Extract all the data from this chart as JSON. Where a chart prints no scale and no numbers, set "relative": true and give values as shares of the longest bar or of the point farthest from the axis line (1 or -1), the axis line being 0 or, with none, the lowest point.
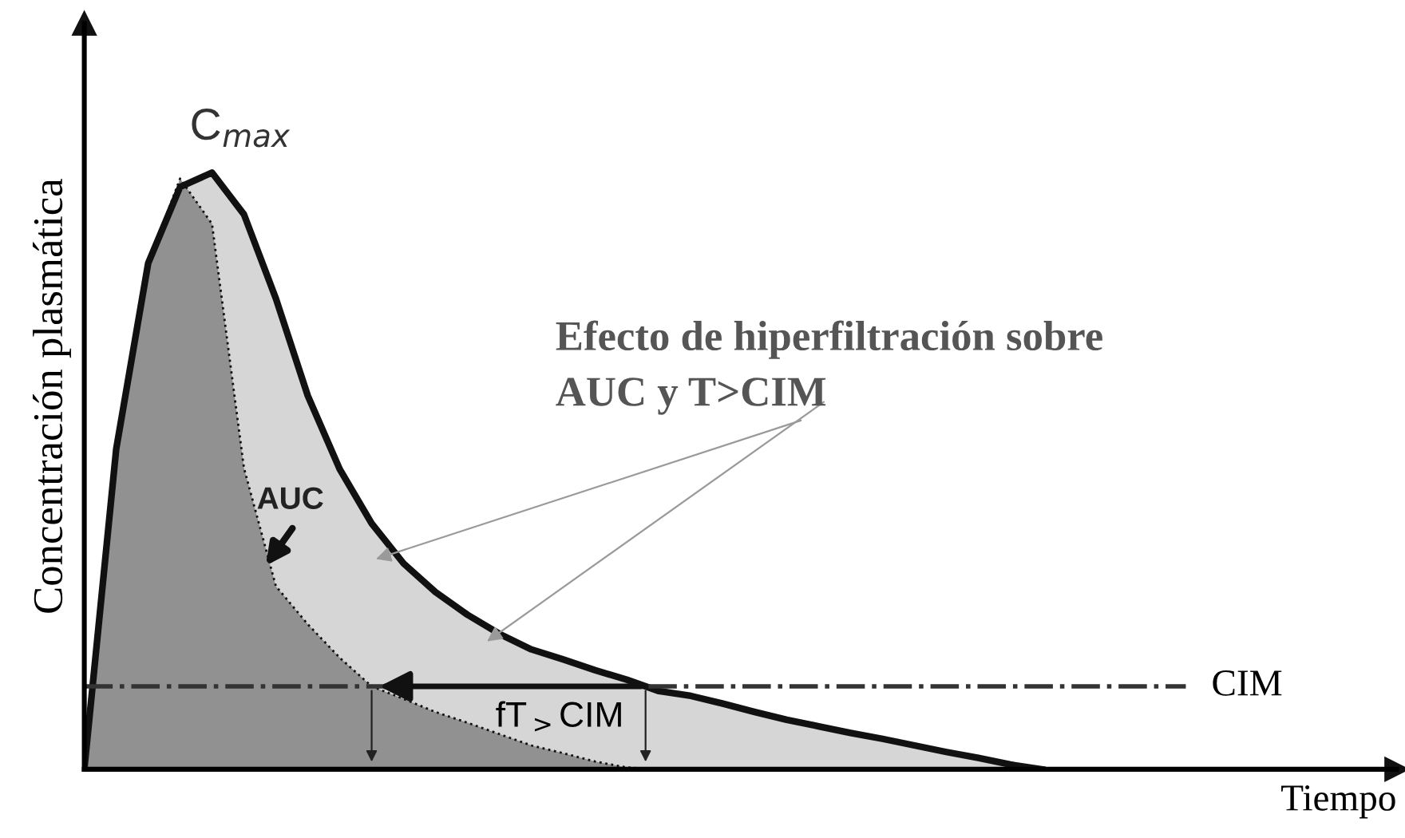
{
  "chart_data": {
    "type": "area",
    "relative": true,
    "ylabel": "Concentración plasmática",
    "categories": [
      null,
      null,
      null,
      null,
      null,
      null,
      null,
      null,
      null,
      null,
      null,
      null,
      null,
      null,
      null,
      null,
      null,
      null,
      null,
      null,
      null,
      null,
      null,
      null,
      null,
      null,
      null,
      null,
      null,
      null,
      null
    ],
    "series": [
      {
        "color": "#d6d6d6",
        "line_style": "solid",
        "values": [
          0,
          0.537,
          0.848,
          0.976,
          1.0,
          0.93,
          0.789,
          0.626,
          0.503,
          0.412,
          0.345,
          0.297,
          0.259,
          0.227,
          0.201,
          0.184,
          0.166,
          0.15,
          0.131,
          0.123,
          0.11,
          0.096,
          0.083,
          0.072,
          0.061,
          0.051,
          0.04,
          0.029,
          0.019,
          0.008,
          0
        ]
      },
      {
        "color": "#919191",
        "line_style": "dotted",
        "values": [
          0,
          0.537,
          0.848,
          0.99,
          0.914,
          0.505,
          0.307,
          0.243,
          0.187,
          0.139,
          0.118,
          0.096,
          0.078,
          0.059,
          0.04,
          0.027,
          0.013,
          0.003,
          0,
          null,
          null,
          null,
          null,
          null,
          null,
          null,
          null,
          null,
          null,
          null,
          null
        ]
      }
    ],
    "ref_lines": [
      {
        "axis": "y",
        "value": 0.139,
        "label": "CIM",
        "line_style": "dashdot",
        "color": "#333333"
      }
    ],
    "annotations": [
      "C$_{max}$",
      "AUC",
      "Efecto de hiperfiltración sobre",
      "AUC y T>CIM",
      "fT$_{>}$CIM",
      "Tiempo"
    ],
    "legend": false
  }
}
